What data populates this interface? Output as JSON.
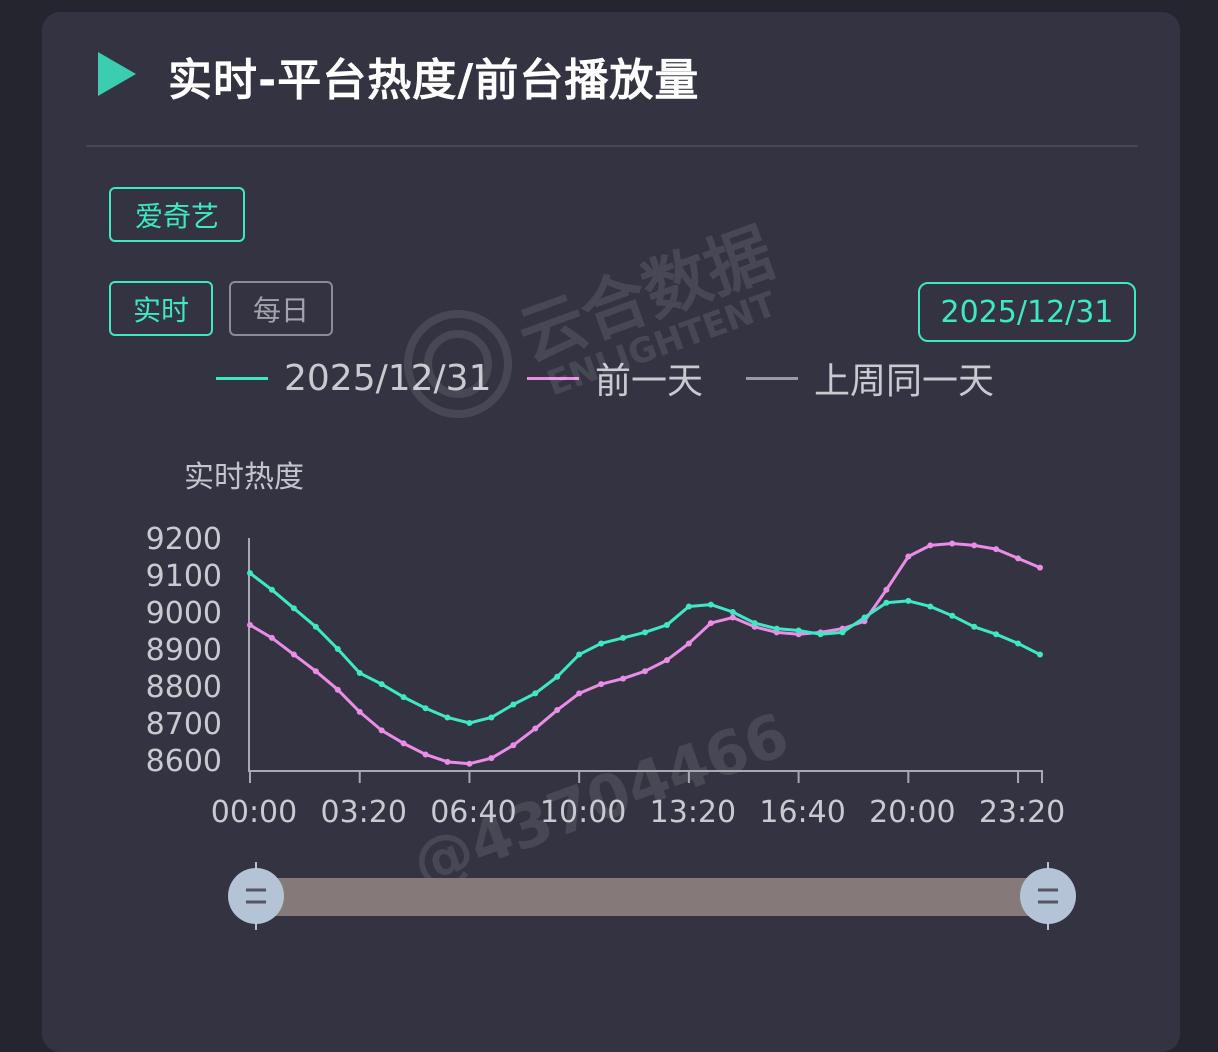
{
  "header": {
    "title": "实时-平台热度/前台播放量"
  },
  "filters": {
    "platform": "爱奇艺",
    "tabs": [
      {
        "label": "实时",
        "active": true
      },
      {
        "label": "每日",
        "active": false
      }
    ],
    "date": "2025/12/31"
  },
  "legend": [
    {
      "label": "2025/12/31",
      "color": "#3ee8c2"
    },
    {
      "label": "前一天",
      "color": "#e98de6"
    },
    {
      "label": "上周同一天",
      "color": "#9a9aa5"
    }
  ],
  "watermark": {
    "brand": "云合数据",
    "brand_en": "ENLIGHTENT",
    "id": "@43704466"
  },
  "chart_data": {
    "type": "line",
    "ylabel": "实时热度",
    "ylim": [
      8600,
      9200
    ],
    "yticks": [
      "8600",
      "8700",
      "8800",
      "8900",
      "9000",
      "9100",
      "9200"
    ],
    "xticks": [
      "00:00",
      "03:20",
      "06:40",
      "10:00",
      "13:20",
      "16:40",
      "20:00",
      "23:20"
    ],
    "x": [
      "00:00",
      "00:40",
      "01:20",
      "02:00",
      "02:40",
      "03:20",
      "04:00",
      "04:40",
      "05:20",
      "06:00",
      "06:40",
      "07:20",
      "08:00",
      "08:40",
      "09:20",
      "10:00",
      "10:40",
      "11:20",
      "12:00",
      "12:40",
      "13:20",
      "14:00",
      "14:40",
      "15:20",
      "16:00",
      "16:40",
      "17:20",
      "18:00",
      "18:40",
      "19:20",
      "20:00",
      "20:40",
      "21:20",
      "22:00",
      "22:40",
      "23:20",
      "24:00"
    ],
    "series": [
      {
        "name": "2025/12/31",
        "color": "#3ee8c2",
        "values": [
          9105,
          9060,
          9010,
          8960,
          8900,
          8835,
          8805,
          8770,
          8740,
          8715,
          8700,
          8715,
          8750,
          8780,
          8825,
          8885,
          8915,
          8930,
          8945,
          8965,
          9015,
          9020,
          9000,
          8970,
          8955,
          8950,
          8940,
          8945,
          8985,
          9025,
          9030,
          9015,
          8990,
          8960,
          8940,
          8915,
          8885
        ]
      },
      {
        "name": "前一天",
        "color": "#e98de6",
        "values": [
          8965,
          8930,
          8885,
          8840,
          8790,
          8730,
          8680,
          8645,
          8615,
          8595,
          8590,
          8605,
          8640,
          8685,
          8735,
          8780,
          8805,
          8820,
          8840,
          8870,
          8915,
          8970,
          8985,
          8960,
          8945,
          8940,
          8945,
          8955,
          8975,
          9060,
          9150,
          9180,
          9185,
          9180,
          9170,
          9145,
          9120
        ]
      }
    ],
    "grid": false
  }
}
